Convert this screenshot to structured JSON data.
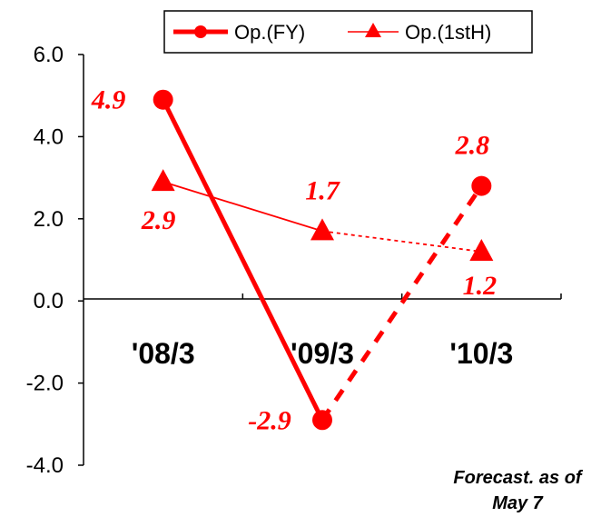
{
  "chart_data": {
    "type": "line",
    "categories": [
      "'08/3",
      "'09/3",
      "'10/3"
    ],
    "ylim": [
      -4.0,
      6.0
    ],
    "yticks": [
      "6.0",
      "4.0",
      "2.0",
      "0.0",
      "-2.0",
      "-4.0"
    ],
    "series": [
      {
        "name": "Op.(FY)",
        "values": [
          4.9,
          -2.9,
          2.8
        ],
        "labels": [
          "4.9",
          "-2.9",
          "2.8"
        ],
        "marker": "circle",
        "forecast_from_index": 1
      },
      {
        "name": "Op.(1stH)",
        "values": [
          2.9,
          1.7,
          1.2
        ],
        "labels": [
          "2.9",
          "1.7",
          "1.2"
        ],
        "marker": "triangle",
        "forecast_from_index": 1
      }
    ],
    "legend": "top-right",
    "grid": false
  },
  "note": [
    "Forecast. as of",
    "May 7"
  ],
  "colors": {
    "series": "#ff0000",
    "axis": "#000000"
  }
}
